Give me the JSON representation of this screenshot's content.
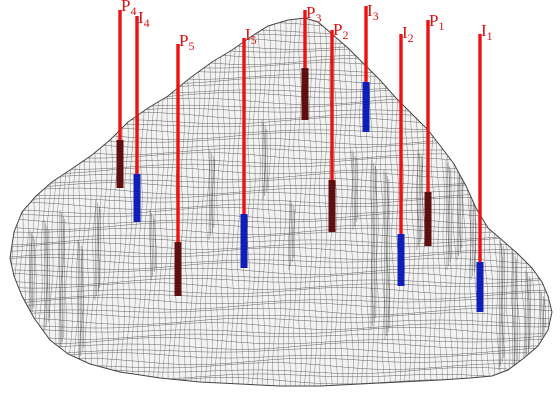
{
  "colors": {
    "background": "#ffffff",
    "mesh_stroke": "#555555",
    "mesh_shadow": "#2a2a2a",
    "well_pipe": "#ee1111",
    "producer_section": "#6a1010",
    "injector_section": "#1122cc",
    "label": "#dd1111"
  },
  "wells": [
    {
      "id": "P4",
      "letter": "P",
      "subscript": "4",
      "type": "producer"
    },
    {
      "id": "I4",
      "letter": "I",
      "subscript": "4",
      "type": "injector"
    },
    {
      "id": "P5",
      "letter": "P",
      "subscript": "5",
      "type": "producer"
    },
    {
      "id": "I5",
      "letter": "I",
      "subscript": "5",
      "type": "injector"
    },
    {
      "id": "P3",
      "letter": "P",
      "subscript": "3",
      "type": "producer"
    },
    {
      "id": "P2",
      "letter": "P",
      "subscript": "2",
      "type": "producer"
    },
    {
      "id": "I3",
      "letter": "I",
      "subscript": "3",
      "type": "injector"
    },
    {
      "id": "I2",
      "letter": "I",
      "subscript": "2",
      "type": "injector"
    },
    {
      "id": "P1",
      "letter": "P",
      "subscript": "1",
      "type": "producer"
    },
    {
      "id": "I1",
      "letter": "I",
      "subscript": "1",
      "type": "injector"
    }
  ]
}
